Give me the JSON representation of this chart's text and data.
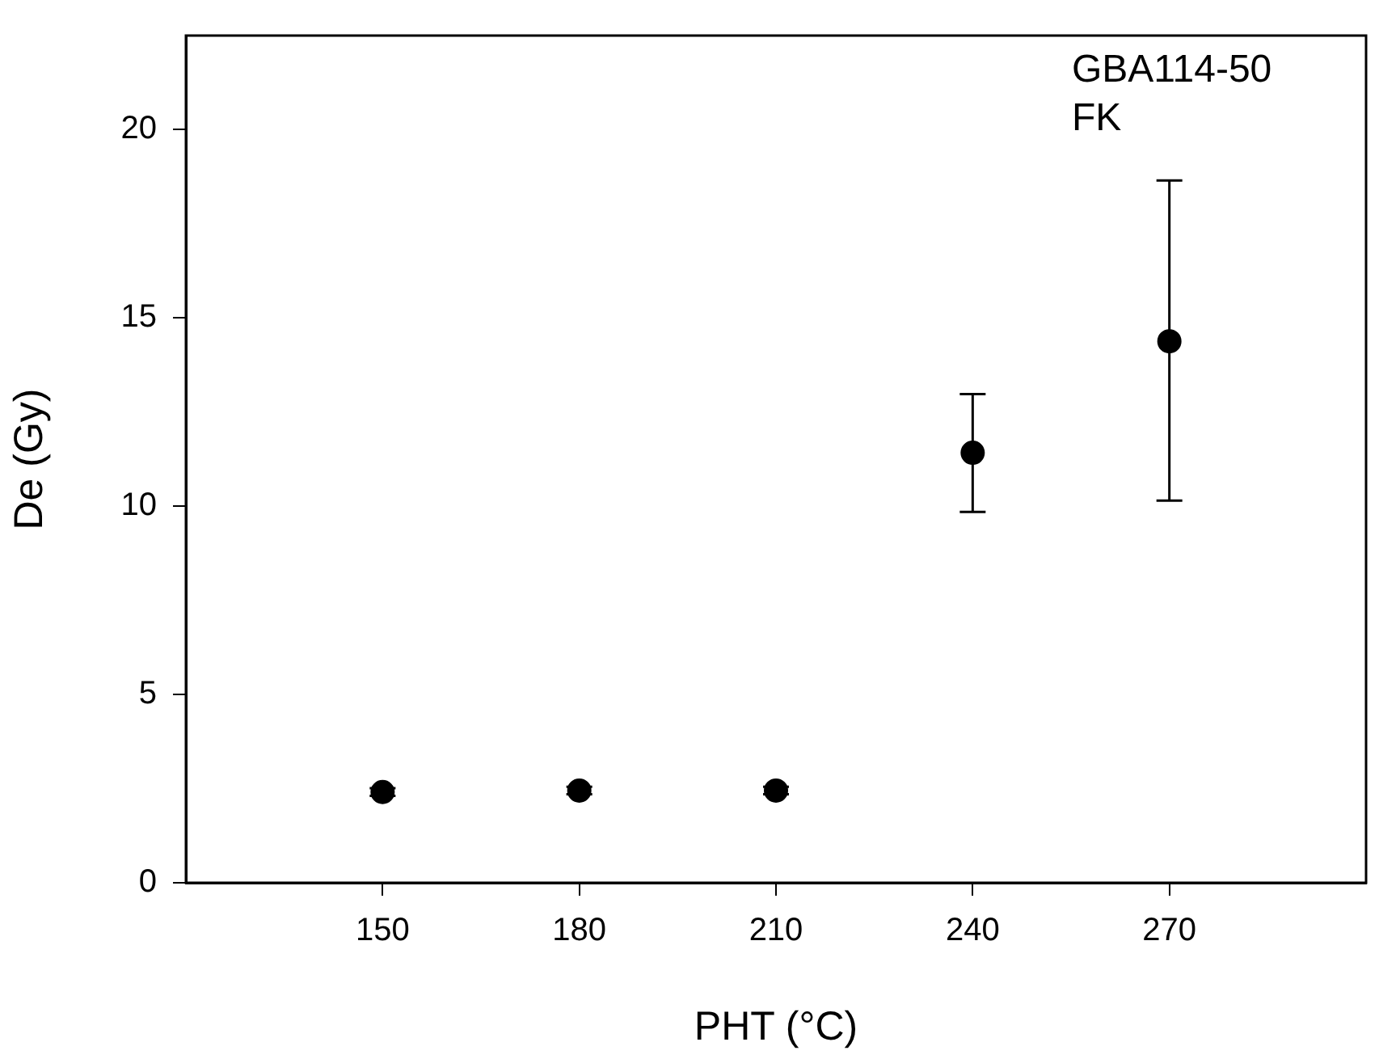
{
  "chart_data": {
    "type": "scatter",
    "xlabel": "PHT (°C)",
    "ylabel": "De (Gy)",
    "x": [
      150,
      180,
      210,
      240,
      270
    ],
    "values": [
      2.41,
      2.45,
      2.45,
      11.42,
      14.38
    ],
    "errors": [
      0.1,
      0.1,
      0.1,
      [
        9.85,
        12.98
      ],
      [
        10.15,
        18.65
      ]
    ],
    "color": "#000000",
    "marker": "circle",
    "xlim": [
      120,
      300
    ],
    "xticks": [
      150,
      180,
      210,
      240,
      270
    ],
    "ylim": [
      0,
      22.5
    ],
    "yticks": [
      0,
      5,
      10,
      15,
      20
    ],
    "grid": false,
    "legend": false,
    "annotations": [
      "GBA114-50",
      "FK"
    ]
  }
}
